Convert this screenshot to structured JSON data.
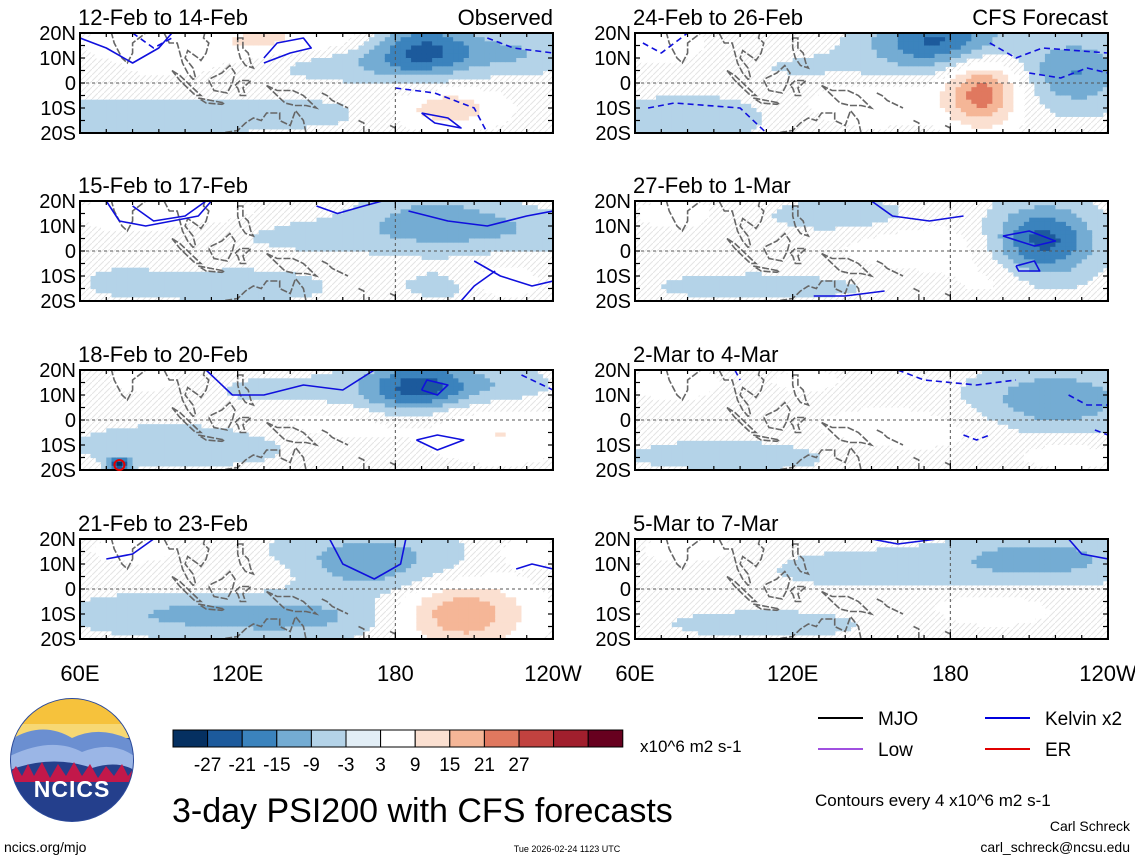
{
  "chart_data": {
    "type": "heatmap",
    "title": "3-day PSI200 with CFS forecasts",
    "units": "x10^6 m2 s-1",
    "contour_note": "Contours every 4 x10^6 m2 s-1",
    "x_ticks": [
      "60E",
      "120E",
      "180",
      "120W"
    ],
    "y_ticks": [
      "20N",
      "10N",
      "0",
      "10S",
      "20S"
    ],
    "x_range_deg_east": [
      60,
      240
    ],
    "y_range_deg": [
      -20,
      20
    ],
    "colorbar": {
      "ticks": [
        "-27",
        "-21",
        "-15",
        "-9",
        "-3",
        "3",
        "9",
        "15",
        "21",
        "27"
      ],
      "colors": [
        "#053061",
        "#1c5a9c",
        "#3b83bd",
        "#74acd3",
        "#b4d3e8",
        "#e2eef6",
        "#ffffff",
        "#fbe0d1",
        "#f5b697",
        "#e0785f",
        "#c1423f",
        "#a11f2d",
        "#67001f"
      ]
    },
    "legend": [
      {
        "label": "MJO",
        "color": "#000000"
      },
      {
        "label": "Kelvin x2",
        "color": "#0000dd"
      },
      {
        "label": "Low",
        "color": "#a050e0"
      },
      {
        "label": "ER",
        "color": "#e00000"
      }
    ],
    "panels": [
      {
        "title": "12-Feb to 14-Feb",
        "tag": "Observed",
        "column": "observed",
        "row": 0,
        "anomalies": [
          {
            "lon": 150,
            "lat": 18,
            "sx": 25,
            "sy": 6,
            "v": 8
          },
          {
            "lon": 120,
            "lat": 16,
            "sx": 15,
            "sy": 5,
            "v": 6
          },
          {
            "lon": 75,
            "lat": 16,
            "sx": 12,
            "sy": 4,
            "v": 6
          },
          {
            "lon": 190,
            "lat": 14,
            "sx": 14,
            "sy": 8,
            "v": -22
          },
          {
            "lon": 225,
            "lat": 12,
            "sx": 16,
            "sy": 6,
            "v": -9
          },
          {
            "lon": 160,
            "lat": 8,
            "sx": 25,
            "sy": 5,
            "v": -7
          },
          {
            "lon": 85,
            "lat": -14,
            "sx": 30,
            "sy": 6,
            "v": -8
          },
          {
            "lon": 200,
            "lat": -10,
            "sx": 15,
            "sy": 6,
            "v": 13
          },
          {
            "lon": 150,
            "lat": -12,
            "sx": 20,
            "sy": 5,
            "v": -4
          },
          {
            "lon": 95,
            "lat": 6,
            "sx": 20,
            "sy": 5,
            "v": 4
          }
        ]
      },
      {
        "title": "15-Feb to 17-Feb",
        "tag": "",
        "column": "observed",
        "row": 1,
        "anomalies": [
          {
            "lon": 80,
            "lat": 15,
            "sx": 15,
            "sy": 5,
            "v": 8
          },
          {
            "lon": 115,
            "lat": 16,
            "sx": 12,
            "sy": 4,
            "v": 5
          },
          {
            "lon": 195,
            "lat": 12,
            "sx": 20,
            "sy": 8,
            "v": -12
          },
          {
            "lon": 230,
            "lat": 8,
            "sx": 20,
            "sy": 6,
            "v": -6
          },
          {
            "lon": 150,
            "lat": 6,
            "sx": 25,
            "sy": 5,
            "v": -5
          },
          {
            "lon": 120,
            "lat": -14,
            "sx": 25,
            "sy": 5,
            "v": -7
          },
          {
            "lon": 200,
            "lat": -14,
            "sx": 14,
            "sy": 5,
            "v": -5
          },
          {
            "lon": 220,
            "lat": -12,
            "sx": 10,
            "sy": 5,
            "v": 9
          },
          {
            "lon": 75,
            "lat": -12,
            "sx": 12,
            "sy": 5,
            "v": -4
          }
        ]
      },
      {
        "title": "18-Feb to 20-Feb",
        "tag": "",
        "column": "observed",
        "row": 2,
        "anomalies": [
          {
            "lon": 190,
            "lat": 13,
            "sx": 15,
            "sy": 8,
            "v": -24
          },
          {
            "lon": 225,
            "lat": 14,
            "sx": 12,
            "sy": 5,
            "v": -6
          },
          {
            "lon": 140,
            "lat": 12,
            "sx": 25,
            "sy": 5,
            "v": -5
          },
          {
            "lon": 160,
            "lat": -2,
            "sx": 25,
            "sy": 5,
            "v": 6
          },
          {
            "lon": 220,
            "lat": -6,
            "sx": 20,
            "sy": 8,
            "v": 9
          },
          {
            "lon": 100,
            "lat": -10,
            "sx": 30,
            "sy": 6,
            "v": -8
          },
          {
            "lon": 85,
            "lat": 16,
            "sx": 12,
            "sy": 4,
            "v": 6
          },
          {
            "lon": 75,
            "lat": -18,
            "sx": 3,
            "sy": 2,
            "v": -28
          },
          {
            "lon": 200,
            "lat": 4,
            "sx": 10,
            "sy": 4,
            "v": 4
          }
        ]
      },
      {
        "title": "21-Feb to 23-Feb",
        "tag": "",
        "column": "observed",
        "row": 3,
        "anomalies": [
          {
            "lon": 205,
            "lat": -10,
            "sx": 18,
            "sy": 10,
            "v": 21
          },
          {
            "lon": 170,
            "lat": 10,
            "sx": 25,
            "sy": 9,
            "v": -14
          },
          {
            "lon": 145,
            "lat": -12,
            "sx": 30,
            "sy": 6,
            "v": -9
          },
          {
            "lon": 95,
            "lat": -10,
            "sx": 30,
            "sy": 6,
            "v": -8
          },
          {
            "lon": 80,
            "lat": 16,
            "sx": 12,
            "sy": 4,
            "v": 7
          },
          {
            "lon": 230,
            "lat": 15,
            "sx": 10,
            "sy": 5,
            "v": 6
          },
          {
            "lon": 130,
            "lat": 6,
            "sx": 20,
            "sy": 5,
            "v": 4
          }
        ]
      },
      {
        "title": "24-Feb to 26-Feb",
        "tag": "CFS Forecast",
        "column": "forecast",
        "row": 0,
        "anomalies": [
          {
            "lon": 175,
            "lat": 17,
            "sx": 18,
            "sy": 8,
            "v": -22
          },
          {
            "lon": 192,
            "lat": -4,
            "sx": 10,
            "sy": 10,
            "v": 24
          },
          {
            "lon": 228,
            "lat": 4,
            "sx": 14,
            "sy": 10,
            "v": -15
          },
          {
            "lon": 150,
            "lat": -8,
            "sx": 18,
            "sy": 7,
            "v": 8
          },
          {
            "lon": 80,
            "lat": -14,
            "sx": 20,
            "sy": 6,
            "v": -9
          },
          {
            "lon": 70,
            "lat": 15,
            "sx": 12,
            "sy": 5,
            "v": 8
          },
          {
            "lon": 130,
            "lat": 6,
            "sx": 25,
            "sy": 5,
            "v": -4
          }
        ]
      },
      {
        "title": "27-Feb to 1-Mar",
        "tag": "",
        "column": "forecast",
        "row": 1,
        "anomalies": [
          {
            "lon": 215,
            "lat": 4,
            "sx": 14,
            "sy": 10,
            "v": -24
          },
          {
            "lon": 170,
            "lat": 2,
            "sx": 25,
            "sy": 8,
            "v": 7
          },
          {
            "lon": 140,
            "lat": 14,
            "sx": 20,
            "sy": 5,
            "v": -8
          },
          {
            "lon": 75,
            "lat": 15,
            "sx": 12,
            "sy": 5,
            "v": 6
          },
          {
            "lon": 110,
            "lat": -14,
            "sx": 40,
            "sy": 5,
            "v": -5
          },
          {
            "lon": 195,
            "lat": -12,
            "sx": 12,
            "sy": 6,
            "v": 5
          }
        ]
      },
      {
        "title": "2-Mar to 4-Mar",
        "tag": "",
        "column": "forecast",
        "row": 2,
        "anomalies": [
          {
            "lon": 220,
            "lat": 8,
            "sx": 22,
            "sy": 9,
            "v": -14
          },
          {
            "lon": 160,
            "lat": -4,
            "sx": 25,
            "sy": 7,
            "v": 7
          },
          {
            "lon": 75,
            "lat": 15,
            "sx": 12,
            "sy": 5,
            "v": 8
          },
          {
            "lon": 125,
            "lat": 16,
            "sx": 12,
            "sy": 4,
            "v": 5
          },
          {
            "lon": 100,
            "lat": -14,
            "sx": 35,
            "sy": 5,
            "v": -6
          },
          {
            "lon": 225,
            "lat": -14,
            "sx": 15,
            "sy": 5,
            "v": 6
          }
        ]
      },
      {
        "title": "5-Mar to 7-Mar",
        "tag": "",
        "column": "forecast",
        "row": 3,
        "anomalies": [
          {
            "lon": 215,
            "lat": 12,
            "sx": 25,
            "sy": 7,
            "v": -12
          },
          {
            "lon": 150,
            "lat": 8,
            "sx": 30,
            "sy": 6,
            "v": -6
          },
          {
            "lon": 80,
            "lat": 16,
            "sx": 12,
            "sy": 4,
            "v": 8
          },
          {
            "lon": 195,
            "lat": -8,
            "sx": 20,
            "sy": 6,
            "v": 6
          },
          {
            "lon": 110,
            "lat": -14,
            "sx": 35,
            "sy": 5,
            "v": -5
          }
        ]
      }
    ]
  },
  "branding": {
    "logo_text": "NCICS",
    "site": "ncics.org/mjo",
    "timestamp": "Tue 2026-02-24 1123 UTC",
    "author": "Carl Schreck",
    "email": "carl_schreck@ncsu.edu"
  }
}
